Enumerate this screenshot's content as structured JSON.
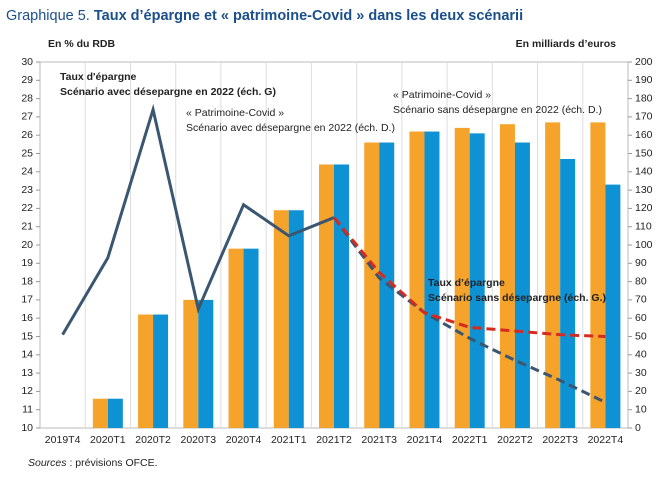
{
  "chart_data": {
    "type": "bar_line",
    "title_prefix": "Graphique 5.",
    "title": "Taux d’épargne et « patrimoine-Covid » dans les deux scénarii",
    "y_label": "En % du RDB",
    "y2_label": "En milliards d’euros",
    "source_label": "Sources",
    "source": " : prévisions OFCE.",
    "categories": [
      "2019T4",
      "2020T1",
      "2020T2",
      "2020T3",
      "2020T4",
      "2021T1",
      "2021T2",
      "2021T3",
      "2021T4",
      "2022T1",
      "2022T2",
      "2022T3",
      "2022T4"
    ],
    "ylim": [
      10,
      30
    ],
    "yticks": [
      10,
      11,
      12,
      13,
      14,
      15,
      16,
      17,
      18,
      19,
      20,
      21,
      22,
      23,
      24,
      25,
      26,
      27,
      28,
      29,
      30
    ],
    "y2lim": [
      0,
      200
    ],
    "y2ticks": [
      0,
      10,
      20,
      30,
      40,
      50,
      60,
      70,
      80,
      90,
      100,
      110,
      120,
      130,
      140,
      150,
      160,
      170,
      180,
      190,
      200
    ],
    "grid": "x",
    "series": [
      {
        "type": "bar",
        "axis": "y2",
        "name": [
          "« Patrimoine-Covid »",
          "Scénario sans désepargne en 2022  (éch. D.)"
        ],
        "color": "#f5a32a",
        "values": [
          0,
          16,
          62,
          70,
          98,
          119,
          144,
          156,
          162,
          164,
          166,
          167,
          167
        ]
      },
      {
        "type": "bar",
        "axis": "y2",
        "name": [
          "« Patrimoine-Covid »",
          "Scénario avec désepargne en 2022  (éch. D.)"
        ],
        "color": "#0f92d3",
        "values": [
          0,
          16,
          62,
          70,
          98,
          119,
          144,
          156,
          162,
          161,
          156,
          147,
          133
        ]
      },
      {
        "type": "line",
        "axis": "y",
        "name": [
          "Taux d'épargne",
          "Scénario avec désepargne en 2022 (éch. G)"
        ],
        "color": "#3b5670",
        "dashed_from": "2021T2",
        "values": [
          15.1,
          19.3,
          27.4,
          16.5,
          22.2,
          20.5,
          21.5,
          18.2,
          16.3,
          14.9,
          13.7,
          12.6,
          11.4
        ]
      },
      {
        "type": "line",
        "axis": "y",
        "name": [
          "Taux d’épargne",
          "Scénario sans désepargne (éch. G.)"
        ],
        "color": "#d62a20",
        "dashed_from": "2021T2",
        "values": [
          null,
          null,
          null,
          null,
          null,
          null,
          21.5,
          18.5,
          16.3,
          15.5,
          15.3,
          15.1,
          15.0
        ]
      }
    ]
  }
}
